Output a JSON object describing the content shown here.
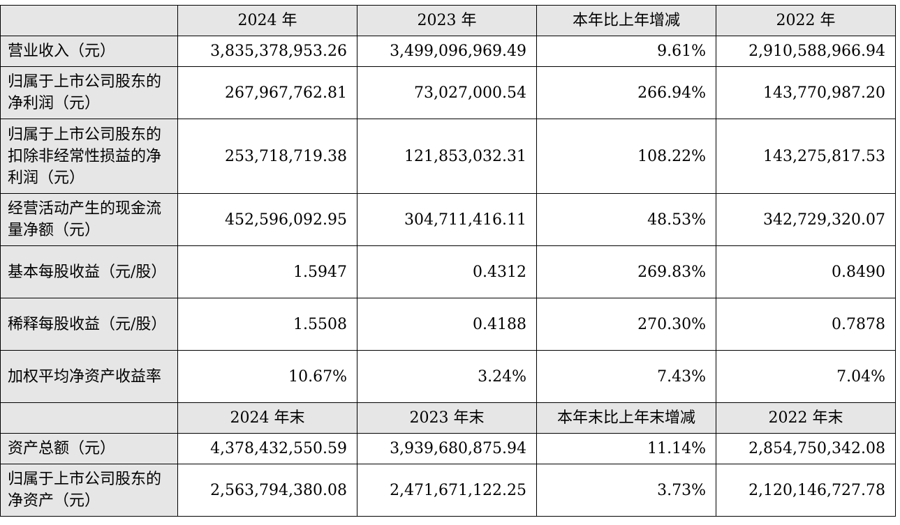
{
  "table": {
    "header1": [
      "2024 年",
      "2023 年",
      "本年比上年增减",
      "2022 年"
    ],
    "rows1": [
      {
        "label": "营业收入（元）",
        "values": [
          "3,835,378,953.26",
          "3,499,096,969.49",
          "9.61%",
          "2,910,588,966.94"
        ]
      },
      {
        "label": "归属于上市公司股东的净利润（元）",
        "values": [
          "267,967,762.81",
          "73,027,000.54",
          "266.94%",
          "143,770,987.20"
        ]
      },
      {
        "label": "归属于上市公司股东的扣除非经常性损益的净利润（元）",
        "values": [
          "253,718,719.38",
          "121,853,032.31",
          "108.22%",
          "143,275,817.53"
        ]
      },
      {
        "label": "经营活动产生的现金流量净额（元）",
        "values": [
          "452,596,092.95",
          "304,711,416.11",
          "48.53%",
          "342,729,320.07"
        ]
      },
      {
        "label": "基本每股收益（元/股）",
        "values": [
          "1.5947",
          "0.4312",
          "269.83%",
          "0.8490"
        ]
      },
      {
        "label": "稀释每股收益（元/股）",
        "values": [
          "1.5508",
          "0.4188",
          "270.30%",
          "0.7878"
        ]
      },
      {
        "label": "加权平均净资产收益率",
        "values": [
          "10.67%",
          "3.24%",
          "7.43%",
          "7.04%"
        ]
      }
    ],
    "header2": [
      "2024 年末",
      "2023 年末",
      "本年末比上年末增减",
      "2022 年末"
    ],
    "rows2": [
      {
        "label": "资产总额（元）",
        "values": [
          "4,378,432,550.59",
          "3,939,680,875.94",
          "11.14%",
          "2,854,750,342.08"
        ]
      },
      {
        "label": "归属于上市公司股东的净资产（元）",
        "values": [
          "2,563,794,380.08",
          "2,471,671,122.25",
          "3.73%",
          "2,120,146,727.78"
        ]
      }
    ]
  }
}
